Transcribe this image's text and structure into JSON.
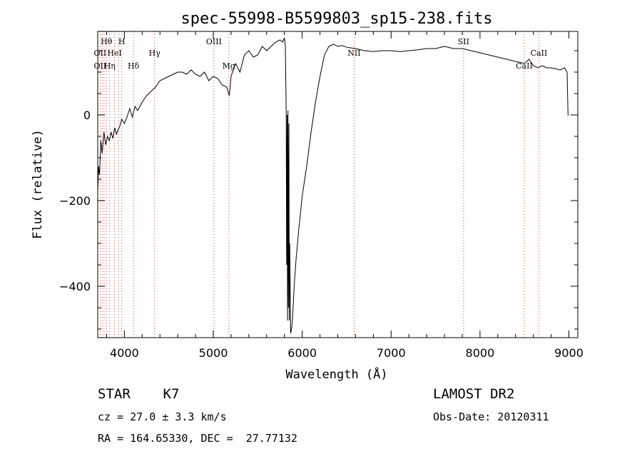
{
  "chart_data": {
    "type": "line",
    "title": "spec-55998-B5599803_sp15-238.fits",
    "xlabel": "Wavelength (Å)",
    "ylabel": "Flux (relative)",
    "xlim": [
      3700,
      9100
    ],
    "ylim": [
      -520,
      195
    ],
    "xticks": [
      4000,
      5000,
      6000,
      7000,
      8000,
      9000
    ],
    "yticks": [
      -400,
      -200,
      0
    ],
    "grid": false,
    "series": [
      {
        "x": [
          3700,
          3710,
          3720,
          3735,
          3750,
          3770,
          3790,
          3810,
          3830,
          3850,
          3870,
          3890,
          3910,
          3930,
          3950,
          3970,
          4000,
          4030,
          4060,
          4090,
          4120,
          4150,
          4200,
          4250,
          4300,
          4350,
          4400,
          4450,
          4500,
          4550,
          4600,
          4650,
          4700,
          4750,
          4800,
          4850,
          4900,
          4950,
          5000,
          5050,
          5100,
          5150,
          5180,
          5200,
          5250,
          5300,
          5350,
          5400,
          5450,
          5500,
          5550,
          5600,
          5650,
          5700,
          5750,
          5780,
          5800,
          5810,
          5820,
          5825,
          5830,
          5835,
          5840,
          5845,
          5850,
          5855,
          5860,
          5870,
          5880,
          5890,
          5900,
          5910,
          5930,
          5960,
          6000,
          6050,
          6100,
          6150,
          6200,
          6250,
          6300,
          6350,
          6400,
          6450,
          6500,
          6600,
          6700,
          6800,
          6900,
          7000,
          7100,
          7200,
          7300,
          7400,
          7500,
          7600,
          7700,
          7800,
          7900,
          8000,
          8100,
          8200,
          8300,
          8400,
          8500,
          8550,
          8600,
          8650,
          8700,
          8750,
          8800,
          8850,
          8900,
          8950,
          8980,
          8990,
          9000
        ],
        "y": [
          -180,
          -120,
          -140,
          -60,
          -90,
          -40,
          -70,
          -50,
          -60,
          -40,
          -55,
          -30,
          -45,
          -35,
          -25,
          -10,
          -20,
          -5,
          15,
          -5,
          20,
          10,
          30,
          45,
          55,
          65,
          80,
          85,
          90,
          95,
          100,
          100,
          95,
          105,
          95,
          90,
          100,
          80,
          90,
          85,
          70,
          65,
          45,
          90,
          120,
          100,
          140,
          150,
          135,
          140,
          160,
          150,
          160,
          170,
          175,
          170,
          180,
          160,
          10,
          -350,
          0,
          -480,
          10,
          -450,
          -20,
          -480,
          -300,
          -510,
          -500,
          -480,
          -440,
          -400,
          -340,
          -270,
          -190,
          -120,
          -40,
          30,
          90,
          140,
          160,
          165,
          160,
          162,
          158,
          155,
          150,
          148,
          150,
          150,
          148,
          150,
          152,
          155,
          155,
          160,
          155,
          155,
          150,
          145,
          140,
          135,
          130,
          125,
          120,
          130,
          115,
          110,
          115,
          110,
          110,
          108,
          105,
          110,
          100,
          0,
          0
        ]
      }
    ],
    "line_markers": [
      {
        "label": "Hθ",
        "x": 3798,
        "row": 0
      },
      {
        "label": "H",
        "x": 3970,
        "row": 0
      },
      {
        "label": "OIII",
        "x": 5007,
        "row": 0
      },
      {
        "label": "SII",
        "x": 7815,
        "row": 0
      },
      {
        "label": "OII",
        "x": 3727,
        "row": 1
      },
      {
        "label": "HeI",
        "x": 3889,
        "row": 1
      },
      {
        "label": "Hγ",
        "x": 4340,
        "row": 1
      },
      {
        "label": "NII",
        "x": 6584,
        "row": 1
      },
      {
        "label": "CaII",
        "x": 8662,
        "row": 1
      },
      {
        "label": "OII",
        "x": 3727,
        "row": 2
      },
      {
        "label": "Hη",
        "x": 3835,
        "row": 2
      },
      {
        "label": "Hδ",
        "x": 4102,
        "row": 2
      },
      {
        "label": "Mg",
        "x": 5175,
        "row": 2
      },
      {
        "label": "CaII",
        "x": 8498,
        "row": 2
      }
    ],
    "marker_lines": [
      3727,
      3750,
      3771,
      3798,
      3835,
      3889,
      3934,
      3970,
      4102,
      4340,
      5007,
      5175,
      6584,
      7815,
      8498,
      8662
    ]
  },
  "info": {
    "class_line": "STAR    K7",
    "survey": "LAMOST DR2",
    "cz_line": "cz = 27.0 ± 3.3 km/s",
    "obs_date": "Obs-Date: 20120311",
    "coords_line": "RA = 164.65330, DEC =  27.77132"
  }
}
